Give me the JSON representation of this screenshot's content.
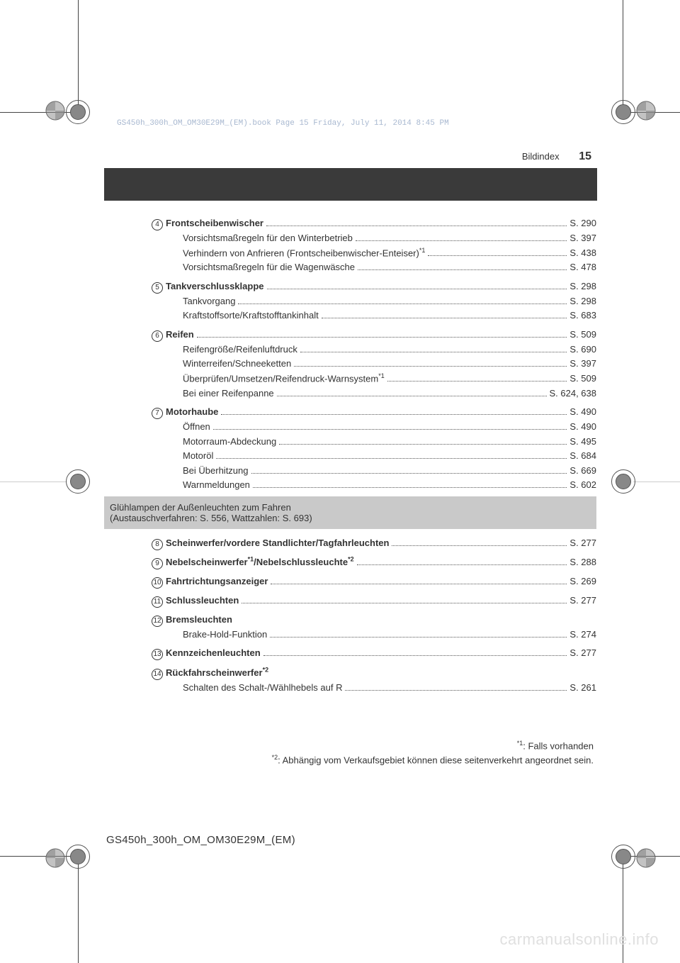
{
  "meta": {
    "bookLine": "GS450h_300h_OM_OM30E29M_(EM).book  Page 15  Friday, July 11, 2014  8:45 PM",
    "sectionTitle": "Bildindex",
    "pageNumber": "15",
    "footerCode": "GS450h_300h_OM_OM30E29M_(EM)",
    "watermark": "carmanualsonline.info"
  },
  "items": [
    {
      "num": "4",
      "bold": true,
      "label": "Frontscheibenwischer",
      "page": "S. 290"
    },
    {
      "indent": true,
      "label": "Vorsichtsmaßregeln für den Winterbetrieb",
      "page": "S. 397"
    },
    {
      "indent": true,
      "label": "Verhindern von Anfrieren (Frontscheibenwischer-Enteiser)",
      "sup": "*1",
      "page": "S. 438"
    },
    {
      "indent": true,
      "label": "Vorsichtsmaßregeln für die Wagenwäsche",
      "page": "S. 478"
    },
    {
      "gap": true
    },
    {
      "num": "5",
      "bold": true,
      "label": "Tankverschlussklappe",
      "page": "S. 298"
    },
    {
      "indent": true,
      "label": "Tankvorgang",
      "page": "S. 298"
    },
    {
      "indent": true,
      "label": "Kraftstoffsorte/Kraftstofftankinhalt",
      "page": "S. 683"
    },
    {
      "gap": true
    },
    {
      "num": "6",
      "bold": true,
      "label": "Reifen",
      "page": "S. 509"
    },
    {
      "indent": true,
      "label": "Reifengröße/Reifenluftdruck",
      "page": "S. 690"
    },
    {
      "indent": true,
      "label": "Winterreifen/Schneeketten",
      "page": "S. 397"
    },
    {
      "indent": true,
      "label": "Überprüfen/Umsetzen/Reifendruck-Warnsystem",
      "sup": "*1",
      "page": "S. 509"
    },
    {
      "indent": true,
      "label": "Bei einer Reifenpanne",
      "page": "S. 624, 638"
    },
    {
      "gap": true
    },
    {
      "num": "7",
      "bold": true,
      "label": "Motorhaube",
      "page": "S. 490"
    },
    {
      "indent": true,
      "label": "Öffnen",
      "page": "S. 490"
    },
    {
      "indent": true,
      "label": "Motorraum-Abdeckung",
      "page": "S. 495"
    },
    {
      "indent": true,
      "label": "Motoröl",
      "page": "S. 684"
    },
    {
      "indent": true,
      "label": "Bei Überhitzung",
      "page": "S. 669"
    },
    {
      "indent": true,
      "label": "Warnmeldungen",
      "page": "S. 602"
    }
  ],
  "grayBox": {
    "title": "Glühlampen der Außenleuchten zum Fahren",
    "sub": "(Austauschverfahren: S. 556, Wattzahlen: S. 693)"
  },
  "items2": [
    {
      "num": "8",
      "bold": true,
      "label": "Scheinwerfer/vordere Standlichter/Tagfahrleuchten",
      "page": "S. 277"
    },
    {
      "gap": true
    },
    {
      "num": "9",
      "bold": true,
      "labelHtml": "Nebelscheinwerfer<sup>*1</sup>/Nebelschlussleuchte<sup>*2</sup>",
      "page": "S. 288"
    },
    {
      "gap": true
    },
    {
      "num": "10",
      "bold": true,
      "label": "Fahrtrichtungsanzeiger",
      "page": "S. 269"
    },
    {
      "gap": true
    },
    {
      "num": "11",
      "bold": true,
      "label": "Schlussleuchten",
      "page": "S. 277"
    },
    {
      "gap": true
    },
    {
      "num": "12",
      "bold": true,
      "label": "Bremsleuchten",
      "nopage": true
    },
    {
      "indent": true,
      "label": "Brake-Hold-Funktion",
      "page": "S. 274"
    },
    {
      "gap": true
    },
    {
      "num": "13",
      "bold": true,
      "label": "Kennzeichenleuchten",
      "page": "S. 277"
    },
    {
      "gap": true
    },
    {
      "num": "14",
      "bold": true,
      "labelHtml": "Rückfahrscheinwerfer<sup>*2</sup>",
      "nopage": true
    },
    {
      "indent": true,
      "label": "Schalten des Schalt-/Wählhebels auf R",
      "page": "S. 261"
    }
  ],
  "footnotes": [
    "*1: Falls vorhanden",
    "*2: Abhängig vom Verkaufsgebiet können diese seitenverkehrt angeordnet sein."
  ]
}
